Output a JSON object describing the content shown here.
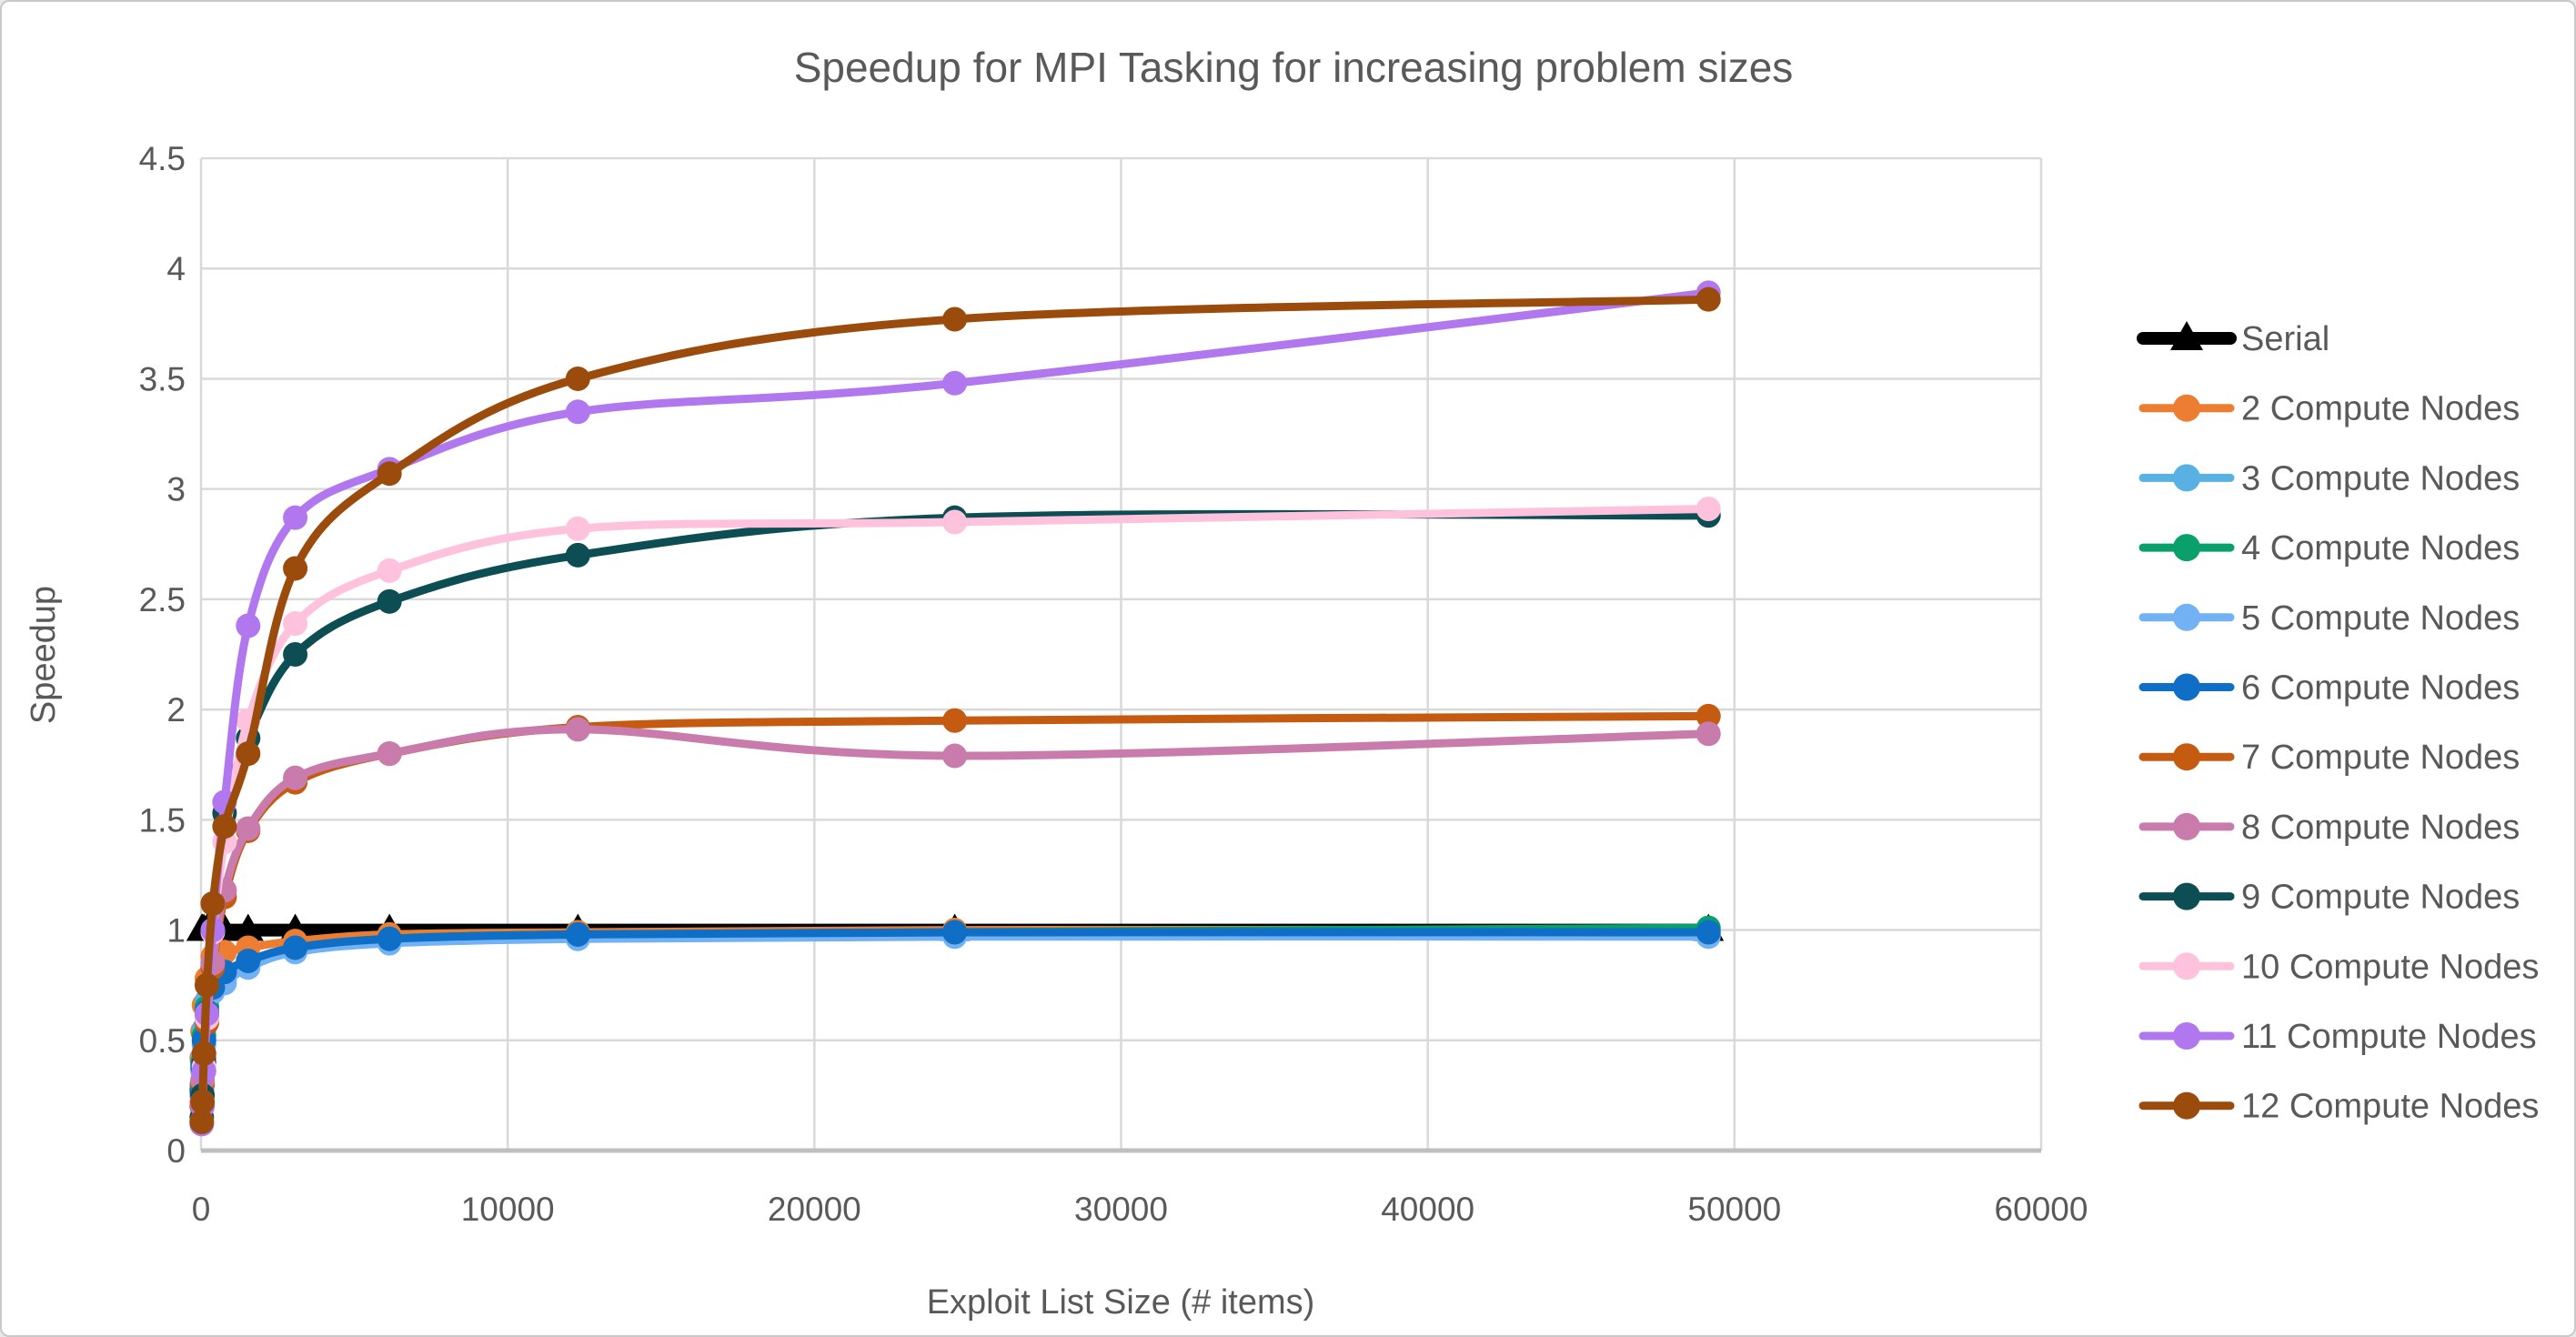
{
  "page": {
    "background": "#ffffff",
    "border_color": "#c9c9c9"
  },
  "style": {
    "text_color": "#595959",
    "gridline_color": "#d9d9d9",
    "axis_line_color": "#bfbfbf",
    "title_font_size": 46,
    "axis_title_font_size": 38,
    "tick_font_size": 37,
    "legend_font_size": 38
  },
  "chart_data": {
    "type": "line",
    "title": "Speedup for MPI Tasking for increasing problem sizes",
    "xlabel": "Exploit List Size (# items)",
    "ylabel": "Speedup",
    "xlim": [
      0,
      60000
    ],
    "ylim": [
      0,
      4.5
    ],
    "x_ticks": [
      0,
      10000,
      20000,
      30000,
      40000,
      50000,
      60000
    ],
    "y_ticks": [
      0,
      0.5,
      1,
      1.5,
      2,
      2.5,
      3,
      3.5,
      4,
      4.5
    ],
    "grid": true,
    "legend_position": "right",
    "x": [
      24,
      48,
      96,
      192,
      384,
      768,
      1536,
      3072,
      6144,
      12288,
      24576,
      49152
    ],
    "series": [
      {
        "name": "Serial",
        "color": "#000000",
        "marker": "triangle",
        "values": [
          1.0,
          1.0,
          1.0,
          1.0,
          1.0,
          1.0,
          1.0,
          1.0,
          1.0,
          1.0,
          1.0,
          1.0
        ]
      },
      {
        "name": "2 Compute Nodes",
        "color": "#ED7D31",
        "marker": "circle",
        "values": [
          0.42,
          0.54,
          0.66,
          0.78,
          0.88,
          0.9,
          0.92,
          0.95,
          0.98,
          0.99,
          1.0,
          1.0
        ]
      },
      {
        "name": "3 Compute Nodes",
        "color": "#58B0E3",
        "marker": "circle",
        "values": [
          0.3,
          0.42,
          0.55,
          0.68,
          0.78,
          0.8,
          0.85,
          0.91,
          0.95,
          0.97,
          0.98,
          0.98
        ]
      },
      {
        "name": "4 Compute Nodes",
        "color": "#0AA06B",
        "marker": "circle",
        "values": [
          0.28,
          0.4,
          0.52,
          0.65,
          0.76,
          0.78,
          0.84,
          0.91,
          0.96,
          0.98,
          0.99,
          1.01
        ]
      },
      {
        "name": "5 Compute Nodes",
        "color": "#72B2F4",
        "marker": "circle",
        "values": [
          0.25,
          0.36,
          0.48,
          0.6,
          0.72,
          0.76,
          0.83,
          0.9,
          0.94,
          0.96,
          0.97,
          0.97
        ]
      },
      {
        "name": "6 Compute Nodes",
        "color": "#0F6FC6",
        "marker": "circle",
        "values": [
          0.27,
          0.38,
          0.5,
          0.63,
          0.74,
          0.81,
          0.86,
          0.92,
          0.96,
          0.98,
          0.99,
          0.99
        ]
      },
      {
        "name": "7 Compute Nodes",
        "color": "#C55A11",
        "marker": "circle",
        "values": [
          0.2,
          0.3,
          0.42,
          0.58,
          0.83,
          1.15,
          1.45,
          1.67,
          1.8,
          1.92,
          1.95,
          1.97
        ]
      },
      {
        "name": "8 Compute Nodes",
        "color": "#C97BAC",
        "marker": "circle",
        "values": [
          0.22,
          0.32,
          0.44,
          0.6,
          0.85,
          1.18,
          1.46,
          1.69,
          1.8,
          1.91,
          1.79,
          1.89
        ]
      },
      {
        "name": "9 Compute Nodes",
        "color": "#0D4E54",
        "marker": "circle",
        "values": [
          0.15,
          0.25,
          0.4,
          0.62,
          1.0,
          1.53,
          1.87,
          2.25,
          2.49,
          2.7,
          2.87,
          2.88
        ]
      },
      {
        "name": "10 Compute Nodes",
        "color": "#FFC2DC",
        "marker": "circle",
        "values": [
          0.13,
          0.22,
          0.38,
          0.6,
          0.99,
          1.4,
          1.95,
          2.39,
          2.63,
          2.82,
          2.85,
          2.91
        ]
      },
      {
        "name": "11 Compute Nodes",
        "color": "#B177EE",
        "marker": "circle",
        "values": [
          0.12,
          0.2,
          0.36,
          0.62,
          1.0,
          1.58,
          2.38,
          2.87,
          3.09,
          3.35,
          3.48,
          3.89
        ]
      },
      {
        "name": "12 Compute Nodes",
        "color": "#9B4B0B",
        "marker": "circle",
        "values": [
          0.13,
          0.22,
          0.44,
          0.75,
          1.12,
          1.47,
          1.8,
          2.64,
          3.07,
          3.5,
          3.77,
          3.86
        ]
      }
    ]
  }
}
